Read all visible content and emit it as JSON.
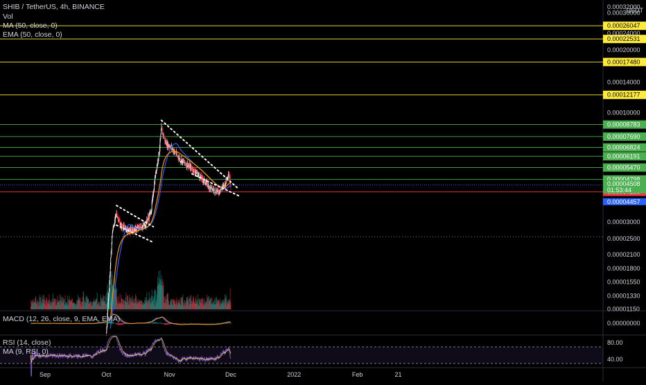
{
  "legend": {
    "title": "SHIB / TetherUS, 4h, BINANCE",
    "vol": "Vol",
    "ma": "MA (50, close, 0)",
    "ema": "EMA (50, close, 0)",
    "macd": "MACD (12, 26, close, 9, EMA, EMA)",
    "rsi": "RSI (14, close)",
    "rsi_ma": "MA (9, RSI, 0)"
  },
  "currency_label": "USDT",
  "colors": {
    "yellow": "#ffeb3b",
    "green": "#4caf50",
    "red": "#f23645",
    "blue": "#2962ff",
    "candle_up": "#ffffff",
    "candle_down": "#f23645",
    "ma": "#2962ff",
    "ema": "#ff9800",
    "rsi": "#7e57c2",
    "volume": "#26a69a",
    "trendline": "#ffffff"
  },
  "chart_data": [
    {
      "type": "line",
      "subtype": "candlestick",
      "scale": "log",
      "x_ticks": [
        "Sep",
        "Oct",
        "Nov",
        "Dec",
        "2022",
        "Feb",
        "21"
      ],
      "y_ticks": [
        "0.00030000",
        "0.00024000",
        "0.00020000",
        "0.00014000",
        "0.00010000",
        "0.00003000",
        "0.00002500",
        "0.00002100",
        "0.00001800",
        "0.00001550",
        "0.00001330",
        "0.00001150"
      ],
      "y_ticks_partial": [
        "0.00036000",
        "0.00032000"
      ],
      "horizontal_levels": [
        {
          "value": "0.00026047",
          "color": "yellow"
        },
        {
          "value": "0.00022531",
          "color": "yellow"
        },
        {
          "value": "0.00017480",
          "color": "yellow"
        },
        {
          "value": "0.00012177",
          "color": "yellow"
        },
        {
          "value": "0.00008783",
          "color": "green"
        },
        {
          "value": "0.00007690",
          "color": "green"
        },
        {
          "value": "0.00006824",
          "color": "green"
        },
        {
          "value": "0.00006191",
          "color": "green"
        },
        {
          "value": "0.00005470",
          "color": "green"
        },
        {
          "value": "0.00004798",
          "color": "green"
        },
        {
          "value": "0.00004185",
          "color": "red"
        }
      ],
      "price_badges": [
        {
          "value": "0.00004508",
          "color": "green"
        },
        {
          "value": "01:53:44",
          "color": "green"
        },
        {
          "value": "0.00004457",
          "color": "blue"
        }
      ],
      "series": [
        {
          "name": "close",
          "points": [
            [
              "2021-08-25",
              8.2e-06
            ],
            [
              "2021-09-10",
              7.8e-06
            ],
            [
              "2021-09-25",
              7.2e-06
            ],
            [
              "2021-10-01",
              8.8e-06
            ],
            [
              "2021-10-04",
              2.7e-05
            ],
            [
              "2021-10-06",
              3.3e-05
            ],
            [
              "2021-10-08",
              2.9e-05
            ],
            [
              "2021-10-12",
              2.72e-05
            ],
            [
              "2021-10-16",
              2.8e-05
            ],
            [
              "2021-10-20",
              2.9e-05
            ],
            [
              "2021-10-23",
              3.4e-05
            ],
            [
              "2021-10-25",
              5e-05
            ],
            [
              "2021-10-27",
              6.6e-05
            ],
            [
              "2021-10-28",
              8.4e-05
            ],
            [
              "2021-10-30",
              7.2e-05
            ],
            [
              "2021-11-02",
              6.8e-05
            ],
            [
              "2021-11-06",
              6e-05
            ],
            [
              "2021-11-10",
              5.6e-05
            ],
            [
              "2021-11-14",
              5.2e-05
            ],
            [
              "2021-11-18",
              4.7e-05
            ],
            [
              "2021-11-22",
              4.3e-05
            ],
            [
              "2021-11-25",
              4.2e-05
            ],
            [
              "2021-11-28",
              4.5e-05
            ],
            [
              "2021-11-30",
              5.2e-05
            ],
            [
              "2021-12-01",
              4.51e-05
            ]
          ]
        }
      ],
      "trendlines": [
        {
          "from": [
            "2021-10-28",
            9.2e-05
          ],
          "to": [
            "2021-12-01",
            4.3e-05
          ]
        },
        {
          "from": [
            "2021-11-12",
            5.1e-05
          ],
          "to": [
            "2021-12-01",
            4e-05
          ]
        },
        {
          "from": [
            "2021-10-06",
            3.6e-05
          ],
          "to": [
            "2021-10-20",
            2.85e-05
          ]
        },
        {
          "from": [
            "2021-10-06",
            2.9e-05
          ],
          "to": [
            "2021-10-20",
            2.4e-05
          ]
        }
      ]
    },
    {
      "type": "line",
      "name": "MACD",
      "y_ticks": [
        "0.00000000"
      ]
    },
    {
      "type": "line",
      "name": "RSI",
      "y_ticks": [
        "80.00",
        "40.00"
      ],
      "bands": [
        30,
        70
      ]
    }
  ]
}
